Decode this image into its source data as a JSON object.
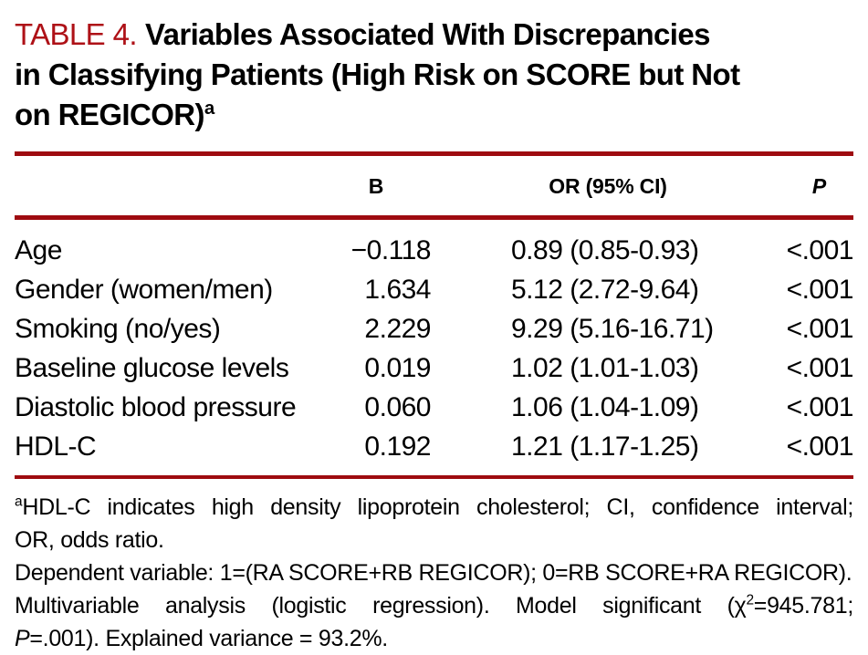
{
  "colors": {
    "accent_red_text": "#AE1117",
    "rule_red": "#9E0B10",
    "text": "#000000",
    "background": "#FFFFFF"
  },
  "title": {
    "label": "TABLE 4.",
    "line1": "Variables Associated With Discrepancies",
    "line2": "in Classifying Patients (High Risk on SCORE but Not",
    "line3": "on REGICOR)",
    "superscript": "a"
  },
  "table": {
    "header": {
      "variable": "",
      "b": "B",
      "or": "OR (95% CI)",
      "p": "P"
    },
    "rows": [
      {
        "variable": "Age",
        "b": "−0.118",
        "or": "0.89 (0.85-0.93)",
        "p": "<.001"
      },
      {
        "variable": "Gender (women/men)",
        "b": "1.634",
        "or": "5.12 (2.72-9.64)",
        "p": "<.001"
      },
      {
        "variable": "Smoking (no/yes)",
        "b": "2.229",
        "or": "9.29 (5.16-16.71)",
        "p": "<.001"
      },
      {
        "variable": "Baseline glucose levels",
        "b": "0.019",
        "or": "1.02 (1.01-1.03)",
        "p": "<.001"
      },
      {
        "variable": "Diastolic blood pressure",
        "b": "0.060",
        "or": "1.06 (1.04-1.09)",
        "p": "<.001"
      },
      {
        "variable": "HDL-C",
        "b": "0.192",
        "or": "1.21 (1.17-1.25)",
        "p": "<.001"
      }
    ]
  },
  "footnotes": {
    "line1_sup": "a",
    "line1_text": "HDL-C indicates high density lipoprotein cholesterol; CI, confidence interval;",
    "line2_text": "OR, odds ratio.",
    "line3_text": "Dependent variable: 1=(RA SCORE+RB REGICOR); 0=RB SCORE+RA REGICOR).",
    "line4_pre": "Multivariable analysis (logistic regression). Model significant (χ",
    "line4_sup": "2",
    "line4_post": "=945.781;",
    "line5_italic": "P",
    "line5_text": "=.001). Explained variance = 93.2%."
  }
}
